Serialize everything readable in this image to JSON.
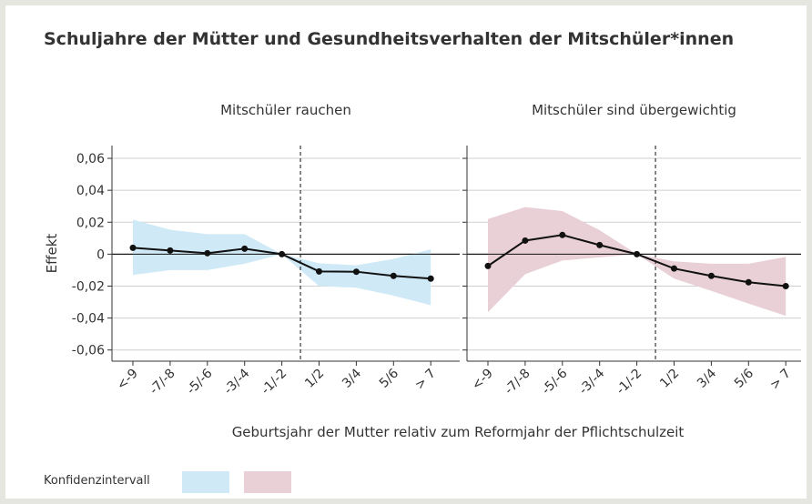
{
  "title": "Schuljahre der Mütter und Gesundheitsverhalten der Mitschüler*innen",
  "xlabel": "Geburtsjahr der Mutter relativ zum Reformjahr der Pflichtschulzeit",
  "legend_label": "Konfidenzintervall",
  "chart_data": [
    {
      "type": "line",
      "subtitle": "Mitschüler rauchen",
      "ylabel": "Effekt",
      "categories": [
        "<-9",
        "-7/-8",
        "-5/-6",
        "-3/-4",
        "-1/-2",
        "1/2",
        "3/4",
        "5/6",
        "> 7"
      ],
      "values": [
        0.004,
        0.0023,
        0.0006,
        0.0034,
        0,
        -0.0108,
        -0.011,
        -0.0136,
        -0.0153
      ],
      "upper": [
        0.0216,
        0.0153,
        0.0125,
        0.0125,
        0,
        -0.0057,
        -0.007,
        -0.003,
        0.003
      ],
      "lower": [
        -0.013,
        -0.01,
        -0.01,
        -0.006,
        0,
        -0.02,
        -0.021,
        -0.026,
        -0.032
      ],
      "band_color": "#cfe9f7",
      "color": "#111111",
      "ylim": [
        -0.067,
        0.068
      ],
      "yticks": [
        {
          "value": 0.06,
          "label": "0,06"
        },
        {
          "value": 0.04,
          "label": "0,04"
        },
        {
          "value": 0.02,
          "label": "0,02"
        },
        0,
        {
          "value": -0.02,
          "label": "-0,02"
        },
        {
          "value": -0.04,
          "label": "-0,04"
        },
        {
          "value": -0.06,
          "label": "-0,06"
        }
      ]
    },
    {
      "type": "line",
      "subtitle": "Mitschüler sind übergewichtig",
      "categories": [
        "<-9",
        "-7/-8",
        "-5/-6",
        "-3/-4",
        "-1/-2",
        "1/2",
        "3/4",
        "5/6",
        "> 7"
      ],
      "values": [
        -0.0074,
        0.0085,
        0.012,
        0.0057,
        0,
        -0.009,
        -0.0136,
        -0.0176,
        -0.02
      ],
      "upper": [
        0.022,
        0.0295,
        0.027,
        0.015,
        0,
        -0.0045,
        -0.006,
        -0.006,
        -0.0017
      ],
      "lower": [
        -0.0364,
        -0.0125,
        -0.004,
        -0.002,
        0,
        -0.0153,
        -0.023,
        -0.031,
        -0.0386
      ],
      "band_color": "#e8d0d6",
      "color": "#111111",
      "ylim": [
        -0.067,
        0.068
      ],
      "yticks": [
        0.06,
        0.04,
        0.02,
        0,
        -0.02,
        -0.04,
        -0.06
      ]
    }
  ]
}
